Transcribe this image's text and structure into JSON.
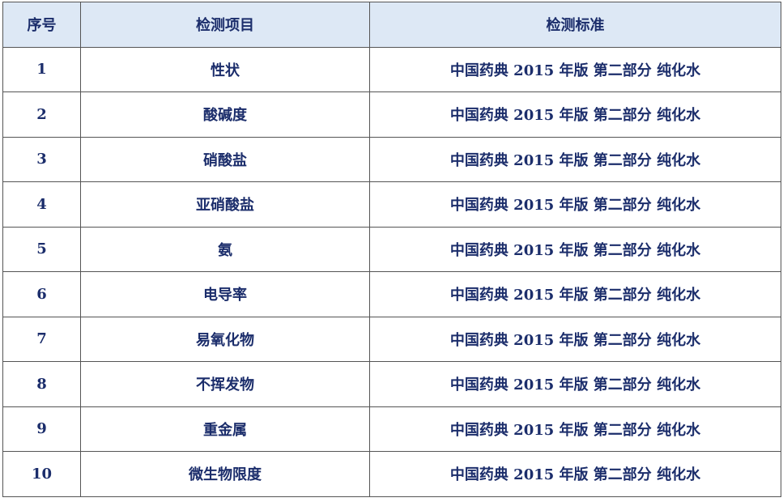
{
  "table": {
    "headers": [
      "序号",
      "检测项目",
      "检测标准"
    ],
    "rows": [
      [
        "1",
        "性状",
        "中国药典 2015 年版 第二部分 纯化水"
      ],
      [
        "2",
        "酸碱度",
        "中国药典 2015 年版 第二部分 纯化水"
      ],
      [
        "3",
        "硝酸盐",
        "中国药典 2015 年版 第二部分 纯化水"
      ],
      [
        "4",
        "亚硝酸盐",
        "中国药典 2015 年版 第二部分 纯化水"
      ],
      [
        "5",
        "氨",
        "中国药典 2015 年版 第二部分 纯化水"
      ],
      [
        "6",
        "电导率",
        "中国药典 2015 年版 第二部分 纯化水"
      ],
      [
        "7",
        "易氧化物",
        "中国药典 2015 年版 第二部分 纯化水"
      ],
      [
        "8",
        "不挥发物",
        "中国药典 2015 年版 第二部分 纯化水"
      ],
      [
        "9",
        "重金属",
        "中国药典 2015 年版 第二部分 纯化水"
      ],
      [
        "10",
        "微生物限度",
        "中国药典 2015 年版 第二部分 纯化水"
      ]
    ]
  },
  "colors": {
    "header_bg": "#dde8f5",
    "text": "#1b2d6b",
    "border": "#555555"
  }
}
